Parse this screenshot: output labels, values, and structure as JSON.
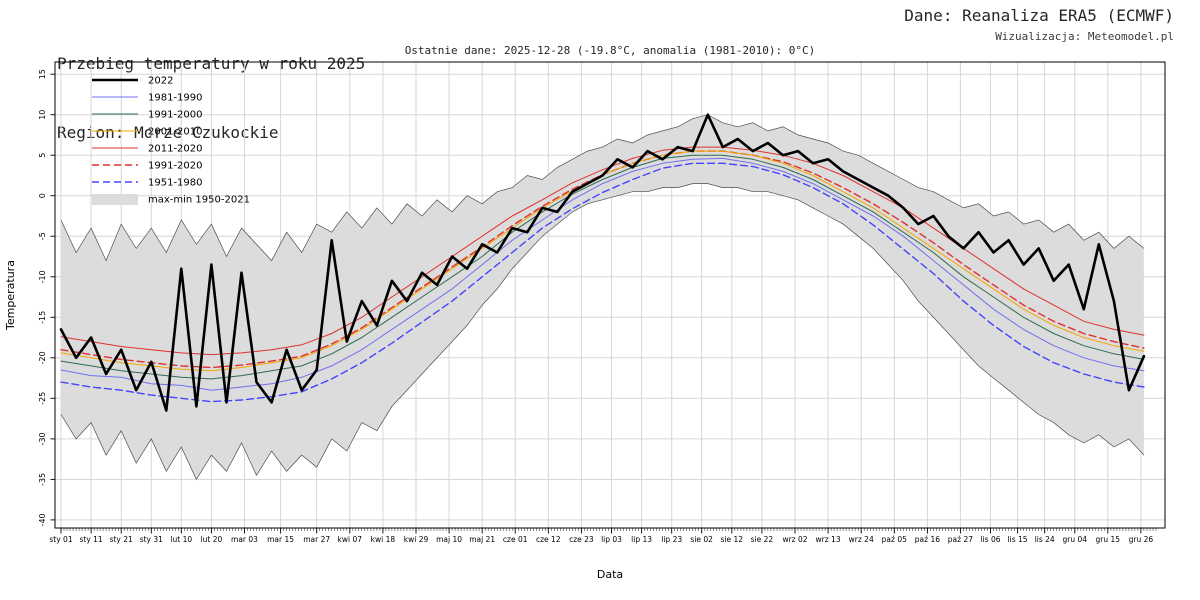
{
  "header": {
    "title": "Przebieg temperatury w roku 2025",
    "region": "Region: Morze Czukockie",
    "source": "Dane: Reanaliza ERA5 (ECMWF)",
    "visualization": "Wizualizacja: Meteomodel.pl",
    "subtitle": "Ostatnie dane: 2025-12-28 (-19.8°C, anomalia (1981-2010): 0°C)"
  },
  "chart_data": {
    "type": "line",
    "title": "Przebieg temperatury w roku 2025",
    "xlabel": "Data",
    "ylabel": "Temperatura",
    "ylim": [
      -40,
      15
    ],
    "xlim": [
      1,
      366
    ],
    "grid": true,
    "legend_position": "top-left",
    "colors": {
      "grid": "#d6d6d6",
      "axis": "#000000",
      "band_fill": "#dcdcdc",
      "band_edge": "#4d4d4d"
    },
    "y_ticks": [
      15,
      10,
      5,
      0,
      -5,
      -10,
      -15,
      -20,
      -25,
      -30,
      -35,
      -40
    ],
    "x_ticks": [
      {
        "day": 1,
        "label": "sty 01"
      },
      {
        "day": 11,
        "label": "sty 11"
      },
      {
        "day": 21,
        "label": "sty 21"
      },
      {
        "day": 31,
        "label": "sty 31"
      },
      {
        "day": 41,
        "label": "lut 10"
      },
      {
        "day": 51,
        "label": "lut 20"
      },
      {
        "day": 62,
        "label": "mar 03"
      },
      {
        "day": 74,
        "label": "mar 15"
      },
      {
        "day": 86,
        "label": "mar 27"
      },
      {
        "day": 97,
        "label": "kwi 07"
      },
      {
        "day": 108,
        "label": "kwi 18"
      },
      {
        "day": 119,
        "label": "kwi 29"
      },
      {
        "day": 130,
        "label": "maj 10"
      },
      {
        "day": 141,
        "label": "maj 21"
      },
      {
        "day": 152,
        "label": "cze 01"
      },
      {
        "day": 163,
        "label": "cze 12"
      },
      {
        "day": 174,
        "label": "cze 23"
      },
      {
        "day": 184,
        "label": "lip 03"
      },
      {
        "day": 194,
        "label": "lip 13"
      },
      {
        "day": 204,
        "label": "lip 23"
      },
      {
        "day": 214,
        "label": "sie 02"
      },
      {
        "day": 224,
        "label": "sie 12"
      },
      {
        "day": 234,
        "label": "sie 22"
      },
      {
        "day": 245,
        "label": "wrz 02"
      },
      {
        "day": 256,
        "label": "wrz 13"
      },
      {
        "day": 267,
        "label": "wrz 24"
      },
      {
        "day": 278,
        "label": "paź 05"
      },
      {
        "day": 289,
        "label": "paź 16"
      },
      {
        "day": 300,
        "label": "paź 27"
      },
      {
        "day": 310,
        "label": "lis 06"
      },
      {
        "day": 319,
        "label": "lis 15"
      },
      {
        "day": 328,
        "label": "lis 24"
      },
      {
        "day": 338,
        "label": "gru 04"
      },
      {
        "day": 349,
        "label": "gru 15"
      },
      {
        "day": 360,
        "label": "gru 26"
      }
    ],
    "x5": [
      1,
      6,
      11,
      16,
      21,
      26,
      31,
      36,
      41,
      46,
      51,
      56,
      61,
      66,
      71,
      76,
      81,
      86,
      91,
      96,
      101,
      106,
      111,
      116,
      121,
      126,
      131,
      136,
      141,
      146,
      151,
      156,
      161,
      166,
      171,
      176,
      181,
      186,
      191,
      196,
      201,
      206,
      211,
      216,
      221,
      226,
      231,
      236,
      241,
      246,
      251,
      256,
      261,
      266,
      271,
      276,
      281,
      286,
      291,
      296,
      301,
      306,
      311,
      316,
      321,
      326,
      331,
      336,
      341,
      346,
      351,
      356,
      361
    ],
    "x10": [
      1,
      11,
      21,
      31,
      41,
      51,
      61,
      71,
      81,
      91,
      101,
      111,
      121,
      131,
      141,
      151,
      161,
      171,
      181,
      191,
      201,
      211,
      221,
      231,
      241,
      251,
      261,
      271,
      281,
      291,
      301,
      311,
      321,
      331,
      341,
      351,
      361
    ],
    "band": {
      "name": "max-min 1950-2021",
      "color": "#dcdcdc",
      "edge_color": "#4d4d4d",
      "x": "x5",
      "max": [
        -3,
        -7,
        -4,
        -8,
        -3.5,
        -6.5,
        -4,
        -7,
        -3,
        -6,
        -3.5,
        -7.5,
        -4,
        -6,
        -8,
        -4.5,
        -7,
        -3.5,
        -4.5,
        -2,
        -4,
        -1.5,
        -3.5,
        -1,
        -2.5,
        -0.5,
        -2,
        0,
        -1,
        0.5,
        1,
        2.5,
        2,
        3.5,
        4.5,
        5.5,
        6,
        7,
        6.5,
        7.5,
        8,
        8.5,
        9.5,
        10,
        9,
        8.5,
        9,
        8,
        8.5,
        7.5,
        7,
        6.5,
        5.5,
        5,
        4,
        3,
        2,
        1,
        0.5,
        -0.5,
        -1.5,
        -1,
        -2.5,
        -2,
        -3.5,
        -3,
        -4.5,
        -3.5,
        -5.5,
        -4.5,
        -6.5,
        -5,
        -6.5
      ],
      "min": [
        -27,
        -30,
        -28,
        -32,
        -29,
        -33,
        -30,
        -34,
        -31,
        -35,
        -32,
        -34,
        -30.5,
        -34.5,
        -31.5,
        -34,
        -32,
        -33.5,
        -30,
        -31.5,
        -28,
        -29,
        -26,
        -24,
        -22,
        -20,
        -18,
        -16,
        -13.5,
        -11.5,
        -9,
        -7,
        -5,
        -3.5,
        -2,
        -1,
        -0.5,
        0,
        0.5,
        0.5,
        1,
        1,
        1.5,
        1.5,
        1,
        1,
        0.5,
        0.5,
        0,
        -0.5,
        -1.5,
        -2.5,
        -3.5,
        -5,
        -6.5,
        -8.5,
        -10.5,
        -13,
        -15,
        -17,
        -19,
        -21,
        -22.5,
        -24,
        -25.5,
        -27,
        -28,
        -29.5,
        -30.5,
        -29.5,
        -31,
        -30,
        -32
      ]
    },
    "series": [
      {
        "name": "2022",
        "color": "#000000",
        "width": 2.6,
        "dash": null,
        "x": "x5",
        "values": [
          -16.5,
          -20,
          -17.5,
          -22,
          -19,
          -24,
          -20.5,
          -26.5,
          -9,
          -26,
          -8.5,
          -25.5,
          -9.5,
          -23,
          -25.5,
          -19,
          -24,
          -21.5,
          -5.5,
          -18,
          -13,
          -16,
          -10.5,
          -13,
          -9.5,
          -11,
          -7.5,
          -9,
          -6,
          -7,
          -4,
          -4.5,
          -1.5,
          -2,
          0.5,
          1.5,
          2.5,
          4.5,
          3.5,
          5.5,
          4.5,
          6,
          5.5,
          10,
          6,
          7,
          5.5,
          6.5,
          5,
          5.5,
          4,
          4.5,
          3,
          2,
          1,
          0,
          -1.5,
          -3.5,
          -2.5,
          -5,
          -6.5,
          -4.5,
          -7,
          -5.5,
          -8.5,
          -6.5,
          -10.5,
          -8.5,
          -14,
          -6,
          -13,
          -24,
          -19.8
        ]
      },
      {
        "name": "1981-1990",
        "color": "#7070f0",
        "width": 1,
        "dash": null,
        "x": "x10",
        "values": [
          -21.5,
          -22.2,
          -22.4,
          -23.2,
          -23.4,
          -24,
          -23.6,
          -23.2,
          -22.4,
          -21,
          -19,
          -16.5,
          -14,
          -11.5,
          -8.5,
          -5.5,
          -3,
          -0.5,
          1.5,
          3,
          4,
          4.5,
          4.6,
          4,
          3,
          1.5,
          -0.5,
          -2.5,
          -5,
          -8,
          -11,
          -14,
          -16.5,
          -18.5,
          -20,
          -21,
          -21.6
        ]
      },
      {
        "name": "1991-2000",
        "color": "#2f6b52",
        "width": 1,
        "dash": null,
        "x": "x10",
        "values": [
          -20.4,
          -21,
          -21.6,
          -22,
          -22.4,
          -22.6,
          -22.2,
          -21.6,
          -21,
          -19.5,
          -17.5,
          -15,
          -12.5,
          -10,
          -7.5,
          -4.5,
          -2,
          0.2,
          2,
          3.5,
          4.6,
          5,
          5,
          4.5,
          3.5,
          2,
          0,
          -2,
          -4.5,
          -7,
          -10,
          -12.5,
          -15,
          -17,
          -18.5,
          -19.5,
          -20.2
        ]
      },
      {
        "name": "2001-2010",
        "color": "#f0a800",
        "width": 1,
        "dash": null,
        "x": "x10",
        "values": [
          -19.4,
          -20,
          -20.6,
          -21,
          -21.4,
          -21.6,
          -21.2,
          -20.6,
          -20,
          -18.5,
          -16.5,
          -14,
          -11.5,
          -9,
          -6.5,
          -4,
          -1.5,
          0.6,
          2.6,
          4,
          5,
          5.5,
          5.5,
          5,
          4,
          2.5,
          0.5,
          -1.5,
          -4,
          -6.5,
          -9,
          -11.5,
          -14,
          -16,
          -17.5,
          -18.5,
          -19.2
        ]
      },
      {
        "name": "2011-2020",
        "color": "#e03030",
        "width": 1,
        "dash": null,
        "x": "x10",
        "values": [
          -17.4,
          -18,
          -18.6,
          -19,
          -19.4,
          -19.6,
          -19.4,
          -19,
          -18.4,
          -17,
          -15,
          -12.5,
          -10,
          -7.5,
          -5,
          -2.5,
          -0.5,
          1.6,
          3.2,
          4.6,
          5.6,
          6,
          6,
          5.6,
          5,
          4,
          2.5,
          0.5,
          -1.5,
          -4,
          -6.5,
          -9,
          -11.5,
          -13.5,
          -15.5,
          -16.5,
          -17.2
        ]
      },
      {
        "name": "1991-2020",
        "color": "#e03030",
        "width": 1.4,
        "dash": "7,4",
        "x": "x10",
        "values": [
          -19,
          -19.6,
          -20.2,
          -20.6,
          -21,
          -21.2,
          -20.9,
          -20.4,
          -19.8,
          -18.3,
          -16.3,
          -13.8,
          -11.3,
          -8.8,
          -6.3,
          -3.7,
          -1.3,
          0.8,
          2.6,
          4,
          5,
          5.5,
          5.5,
          5,
          4.2,
          2.8,
          1,
          -1,
          -3.3,
          -5.8,
          -8.5,
          -11,
          -13.5,
          -15.5,
          -17,
          -18,
          -18.8
        ]
      },
      {
        "name": "1951-1980",
        "color": "#4444ff",
        "width": 1.4,
        "dash": "7,4",
        "x": "x10",
        "values": [
          -23,
          -23.6,
          -24,
          -24.6,
          -25,
          -25.4,
          -25.2,
          -24.8,
          -24.2,
          -22.6,
          -20.6,
          -18.2,
          -15.6,
          -13,
          -10,
          -7,
          -4,
          -1.6,
          0.4,
          2,
          3.4,
          4,
          4,
          3.6,
          2.6,
          1,
          -1,
          -3.6,
          -6.6,
          -9.6,
          -13,
          -16,
          -18.6,
          -20.6,
          -22,
          -23,
          -23.6
        ]
      }
    ]
  }
}
